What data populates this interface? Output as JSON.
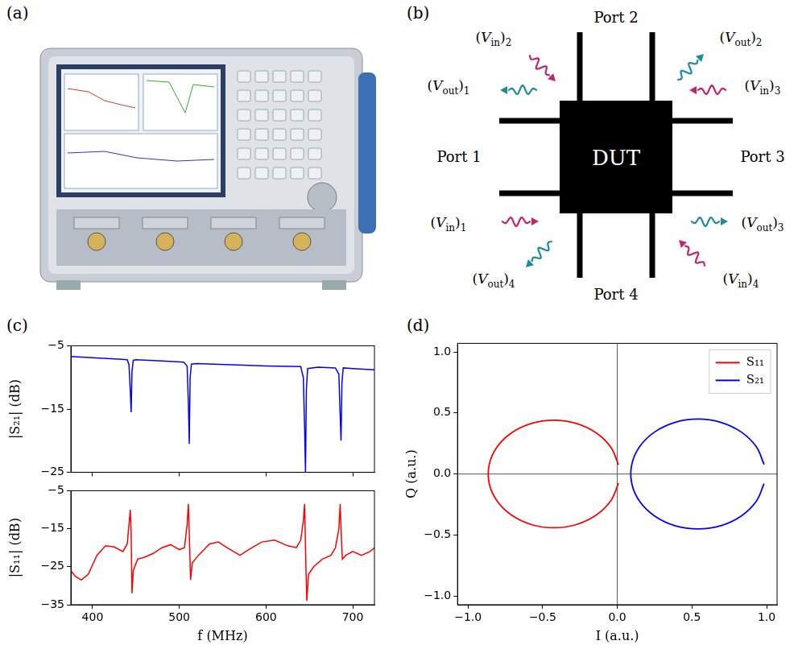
{
  "panels": {
    "a": "(a)",
    "b": "(b)",
    "c": "(c)",
    "d": "(d)"
  },
  "diagram": {
    "center": "DUT",
    "ports": [
      {
        "label": "Port 1",
        "side": "left"
      },
      {
        "label": "Port 2",
        "side": "top"
      },
      {
        "label": "Port 3",
        "side": "right"
      },
      {
        "label": "Port 4",
        "side": "bottom"
      }
    ],
    "signals": [
      {
        "symbol": "V",
        "sub": "out",
        "port": "1"
      },
      {
        "symbol": "V",
        "sub": "in",
        "port": "1"
      },
      {
        "symbol": "V",
        "sub": "in",
        "port": "2"
      },
      {
        "symbol": "V",
        "sub": "out",
        "port": "2"
      },
      {
        "symbol": "V",
        "sub": "in",
        "port": "3"
      },
      {
        "symbol": "V",
        "sub": "out",
        "port": "3"
      },
      {
        "symbol": "V",
        "sub": "out",
        "port": "4"
      },
      {
        "symbol": "V",
        "sub": "in",
        "port": "4"
      }
    ]
  },
  "chart_data": [
    {
      "type": "line",
      "y_label": "|S₂₁| (dB)",
      "color": "#0000ff",
      "tick_labels": "y",
      "grid": false,
      "x": [
        375,
        400,
        430,
        440,
        442,
        443.5,
        444.5,
        445.5,
        447,
        450,
        480,
        505,
        509,
        510.5,
        511.5,
        512.5,
        514,
        520,
        560,
        600,
        640,
        643,
        644.5,
        645.5,
        646.5,
        648,
        660,
        680,
        684,
        685.5,
        686.5,
        687.5,
        689,
        700,
        725
      ],
      "values": [
        -6.7,
        -6.9,
        -7.1,
        -7.2,
        -8,
        -12,
        -15.5,
        -9,
        -7.3,
        -7.2,
        -7.4,
        -7.6,
        -8.2,
        -14,
        -20.5,
        -10,
        -7.9,
        -7.8,
        -8.0,
        -8.2,
        -8.3,
        -10,
        -18,
        -25,
        -12,
        -8.6,
        -8.4,
        -8.5,
        -9.5,
        -16,
        -20,
        -11,
        -8.5,
        -8.6,
        -8.8
      ],
      "xlim": [
        375,
        725
      ],
      "xticks": [
        400,
        500,
        600,
        700
      ],
      "ylim": [
        -25,
        -5
      ],
      "yticks": [
        {
          "value": -25,
          "label": "−25"
        },
        {
          "value": -15,
          "label": "−15"
        },
        {
          "value": -5,
          "label": "−5"
        }
      ]
    },
    {
      "type": "line",
      "x_label": "f (MHz)",
      "y_label": "|S₁₁| (dB)",
      "color": "#ff0000",
      "grid": false,
      "x": [
        375,
        380,
        387,
        395,
        405,
        415,
        425,
        435,
        440,
        442,
        443.5,
        444.5,
        445.5,
        447,
        452,
        460,
        470,
        480,
        490,
        500,
        506,
        509,
        510.5,
        512,
        513,
        515,
        522,
        535,
        545,
        555,
        570,
        580,
        595,
        610,
        625,
        635,
        640,
        643,
        644.5,
        646,
        647,
        649,
        655,
        665,
        675,
        680,
        684,
        685.5,
        687,
        688,
        692,
        700,
        710,
        720,
        725
      ],
      "values": [
        -26,
        -27.5,
        -28.5,
        -27,
        -22,
        -19.5,
        -19.8,
        -21,
        -19,
        -14,
        -10,
        -16,
        -32,
        -26,
        -23,
        -22.5,
        -21.5,
        -20,
        -19.2,
        -20.5,
        -20,
        -14,
        -8.5,
        -20,
        -28.5,
        -24,
        -22,
        -19,
        -18.5,
        -20,
        -22,
        -20.5,
        -18.5,
        -18,
        -19.5,
        -20,
        -18,
        -13,
        -8.5,
        -25,
        -34,
        -27,
        -25,
        -23,
        -22,
        -20,
        -15,
        -8.5,
        -18,
        -23,
        -22,
        -21,
        -22,
        -21,
        -20
      ],
      "xlim": [
        375,
        725
      ],
      "xticks": [
        400,
        500,
        600,
        700
      ],
      "ylim": [
        -35,
        -5
      ],
      "yticks": [
        {
          "value": -35,
          "label": "−35"
        },
        {
          "value": -25,
          "label": "−25"
        },
        {
          "value": -15,
          "label": "−15"
        },
        {
          "value": -5,
          "label": "−5"
        }
      ]
    },
    {
      "type": "scatter",
      "x_label": "I (a.u.)",
      "y_label": "Q (a.u.)",
      "legend": "upper right",
      "grid": false,
      "line_style": "solid",
      "series": [
        {
          "name": "S₁₁",
          "color": "#ff0000",
          "x": [
            0.008,
            -0.044,
            -0.142,
            -0.275,
            -0.425,
            -0.575,
            -0.708,
            -0.806,
            -0.858,
            -0.858,
            -0.806,
            -0.708,
            -0.575,
            -0.425,
            -0.275,
            -0.142,
            -0.044,
            0.008
          ],
          "values": [
            0.076,
            0.22,
            0.337,
            0.414,
            0.44,
            0.414,
            0.337,
            0.22,
            0.076,
            -0.076,
            -0.22,
            -0.337,
            -0.414,
            -0.44,
            -0.414,
            -0.337,
            -0.22,
            -0.076
          ]
        },
        {
          "name": "S₂₁",
          "color": "#0000ff",
          "x": [
            0.983,
            0.93,
            0.829,
            0.694,
            0.54,
            0.386,
            0.251,
            0.15,
            0.097,
            0.097,
            0.15,
            0.251,
            0.386,
            0.54,
            0.694,
            0.829,
            0.93,
            0.983
          ],
          "values": [
            0.078,
            0.225,
            0.345,
            0.423,
            0.45,
            0.423,
            0.345,
            0.225,
            0.078,
            -0.078,
            -0.225,
            -0.345,
            -0.423,
            -0.45,
            -0.423,
            -0.345,
            -0.225,
            -0.078
          ]
        }
      ],
      "xlim": [
        -1.07,
        1.07
      ],
      "xticks": [
        {
          "value": -1,
          "label": "−1.0"
        },
        {
          "value": -0.5,
          "label": "−0.5"
        },
        {
          "value": 0,
          "label": "0.0"
        },
        {
          "value": 0.5,
          "label": "0.5"
        },
        {
          "value": 1,
          "label": "1.0"
        }
      ],
      "ylim": [
        -1.07,
        1.07
      ],
      "yticks": [
        {
          "value": -1,
          "label": "−1.0"
        },
        {
          "value": -0.5,
          "label": "−0.5"
        },
        {
          "value": 0,
          "label": "0.0"
        },
        {
          "value": 0.5,
          "label": "0.5"
        },
        {
          "value": 1,
          "label": "1.0"
        }
      ]
    }
  ]
}
